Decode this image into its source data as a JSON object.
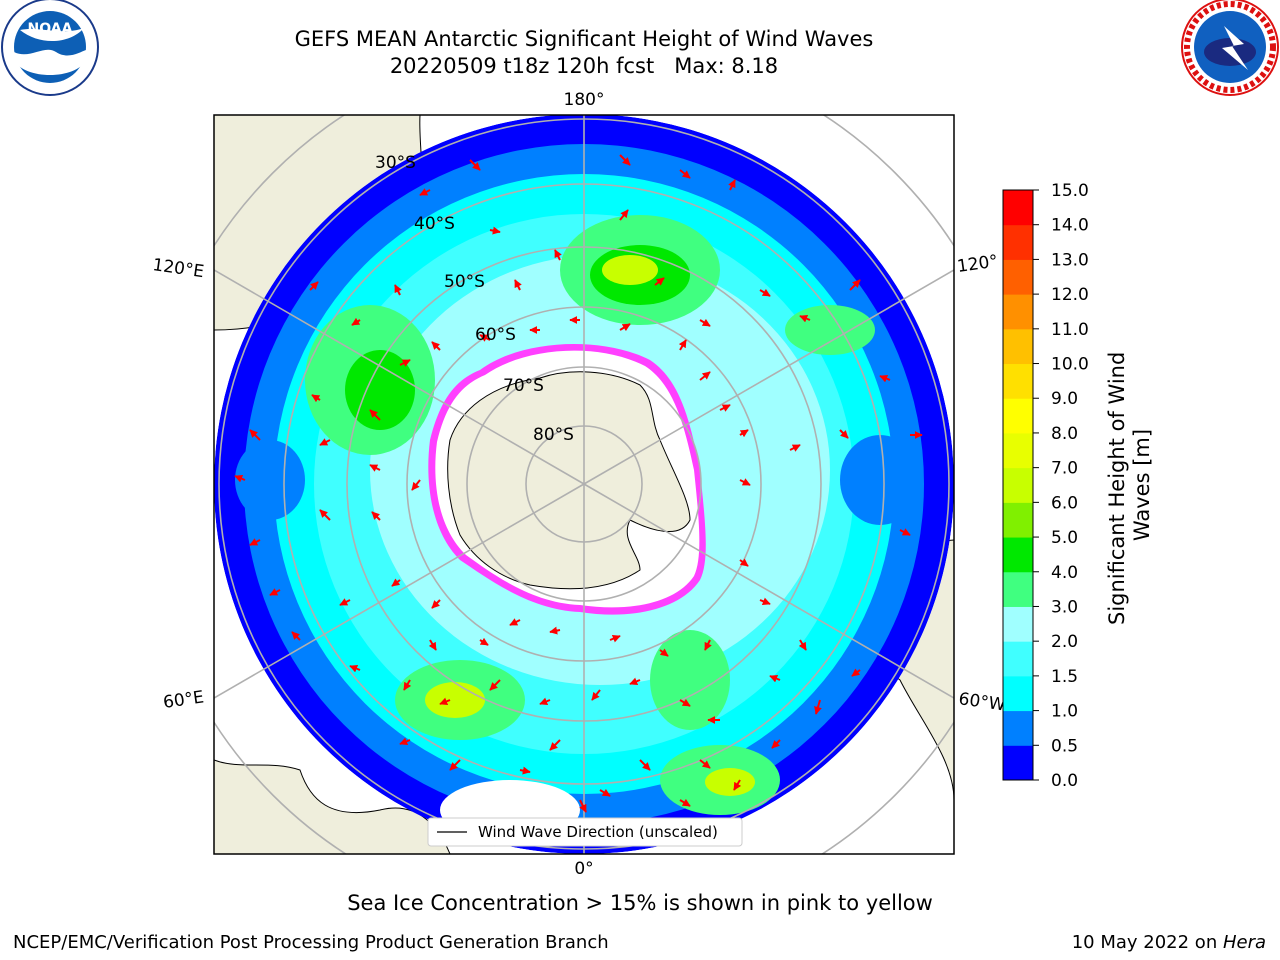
{
  "title": {
    "line1": "GEFS MEAN Antarctic Significant Height of Wind Waves",
    "line2": "20220509 t18z 120h fcst   Max: 8.18"
  },
  "logos": {
    "left": {
      "name": "NOAA",
      "text": "NOAA",
      "ring_text": "NATIONAL OCEANIC AND ATMOSPHERIC ADMINISTRATION · U.S. DEPARTMENT OF COMMERCE"
    },
    "right": {
      "name": "National Weather Service",
      "ring_text": "NATIONAL WEATHER SERVICE"
    }
  },
  "map": {
    "projection": "south-polar-stereographic",
    "lon_labels": {
      "top": "180°",
      "bottom": "0°",
      "left_upper": "120°E",
      "left_lower": "60°E",
      "right_upper": "120°",
      "right_lower": "60°W"
    },
    "lat_labels": [
      "30°S",
      "40°S",
      "50°S",
      "60°S",
      "70°S",
      "80°S"
    ],
    "legend": {
      "label": "Wind Wave Direction (unscaled)"
    },
    "colors": {
      "land": "#efeedc",
      "ice_edge": "#ff40ff",
      "arrow": "#ff0000",
      "grid": "#b0b0b0"
    }
  },
  "colorbar": {
    "label": "Significant Height of Wind Waves [m]",
    "ticks": [
      "0.0",
      "0.5",
      "1.0",
      "1.5",
      "2.0",
      "3.0",
      "4.0",
      "5.0",
      "6.0",
      "7.0",
      "8.0",
      "9.0",
      "10.0",
      "11.0",
      "12.0",
      "13.0",
      "14.0",
      "15.0"
    ],
    "colors": [
      "#0000ff",
      "#0080ff",
      "#00ffff",
      "#40ffff",
      "#a0ffff",
      "#40ff80",
      "#00e800",
      "#80f000",
      "#c8ff00",
      "#e8ff00",
      "#ffff00",
      "#ffe000",
      "#ffc000",
      "#ff9000",
      "#ff6000",
      "#ff3000",
      "#ff0000"
    ]
  },
  "footer": {
    "note": "Sea Ice Concentration > 15% is shown in pink to yellow",
    "credit": "NCEP/EMC/Verification Post Processing Product Generation Branch",
    "date_prefix": "10 May 2022 on ",
    "date_machine": "Hera"
  }
}
